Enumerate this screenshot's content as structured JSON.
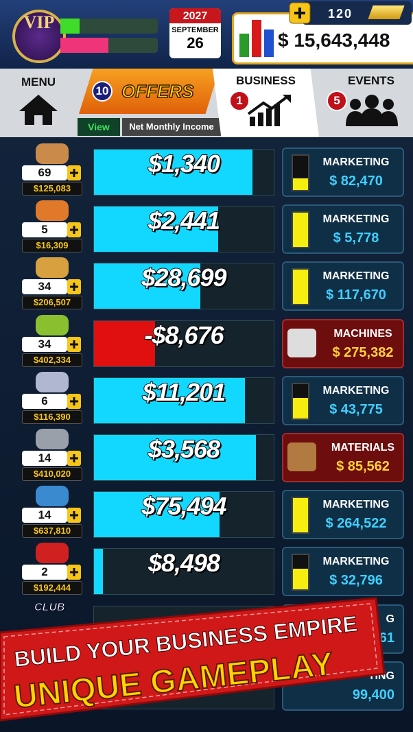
{
  "header": {
    "vip": "VIP",
    "year": "2027",
    "month": "SEPTEMBER",
    "day": "26",
    "gold": "120",
    "money": "$ 15,643,448"
  },
  "tabs": {
    "menu": "MENU",
    "offers_badge": "10",
    "offers": "OFFERS",
    "business_badge": "1",
    "business": "BUSINESS",
    "events_badge": "5",
    "events": "EVENTS",
    "view": "View",
    "sort": "Net Monthly Income"
  },
  "rows": [
    {
      "count": "69",
      "value": "$125,083",
      "income": "$1,340",
      "bar_fill": 0.88,
      "bar_color": "#12d8ff",
      "upgrade_label": "MARKETING",
      "upgrade_cost": "$ 82,470",
      "upgrade_style": "blue",
      "upgrade_fill": 0.35
    },
    {
      "count": "5",
      "value": "$16,309",
      "income": "$2,441",
      "bar_fill": 0.69,
      "bar_color": "#12d8ff",
      "upgrade_label": "MARKETING",
      "upgrade_cost": "$ 5,778",
      "upgrade_style": "blue",
      "upgrade_fill": 1
    },
    {
      "count": "34",
      "value": "$206,507",
      "income": "$28,699",
      "bar_fill": 0.59,
      "bar_color": "#12d8ff",
      "upgrade_label": "MARKETING",
      "upgrade_cost": "$ 117,670",
      "upgrade_style": "blue",
      "upgrade_fill": 1
    },
    {
      "count": "34",
      "value": "$402,334",
      "income": "-$8,676",
      "bar_fill": 0.34,
      "bar_color": "#e01010",
      "upgrade_label": "MACHINES",
      "upgrade_cost": "$ 275,382",
      "upgrade_style": "red"
    },
    {
      "count": "6",
      "value": "$116,390",
      "income": "$11,201",
      "bar_fill": 0.84,
      "bar_color": "#12d8ff",
      "upgrade_label": "MARKETING",
      "upgrade_cost": "$ 43,775",
      "upgrade_style": "blue",
      "upgrade_fill": 0.6
    },
    {
      "count": "14",
      "value": "$410,020",
      "income": "$3,568",
      "bar_fill": 0.9,
      "bar_color": "#12d8ff",
      "upgrade_label": "MATERIALS",
      "upgrade_cost": "$ 85,562",
      "upgrade_style": "red"
    },
    {
      "count": "14",
      "value": "$637,810",
      "income": "$75,494",
      "bar_fill": 0.7,
      "bar_color": "#12d8ff",
      "upgrade_label": "MARKETING",
      "upgrade_cost": "$ 264,522",
      "upgrade_style": "blue",
      "upgrade_fill": 1
    },
    {
      "count": "2",
      "value": "$192,444",
      "income": "$8,498",
      "bar_fill": 0.05,
      "bar_color": "#12d8ff",
      "upgrade_label": "MARKETING",
      "upgrade_cost": "$ 32,796",
      "upgrade_style": "blue",
      "upgrade_fill": 0.6
    }
  ],
  "hidden_rows": [
    {
      "icon_text": "CLUB",
      "upgrade_label": "G",
      "upgrade_cost": "61"
    },
    {
      "upgrade_label": "TING",
      "upgrade_cost": "99,400"
    }
  ],
  "banner": {
    "line1": "BUILD YOUR BUSINESS EMPIRE",
    "line2": "UNIQUE GAMEPLAY"
  }
}
